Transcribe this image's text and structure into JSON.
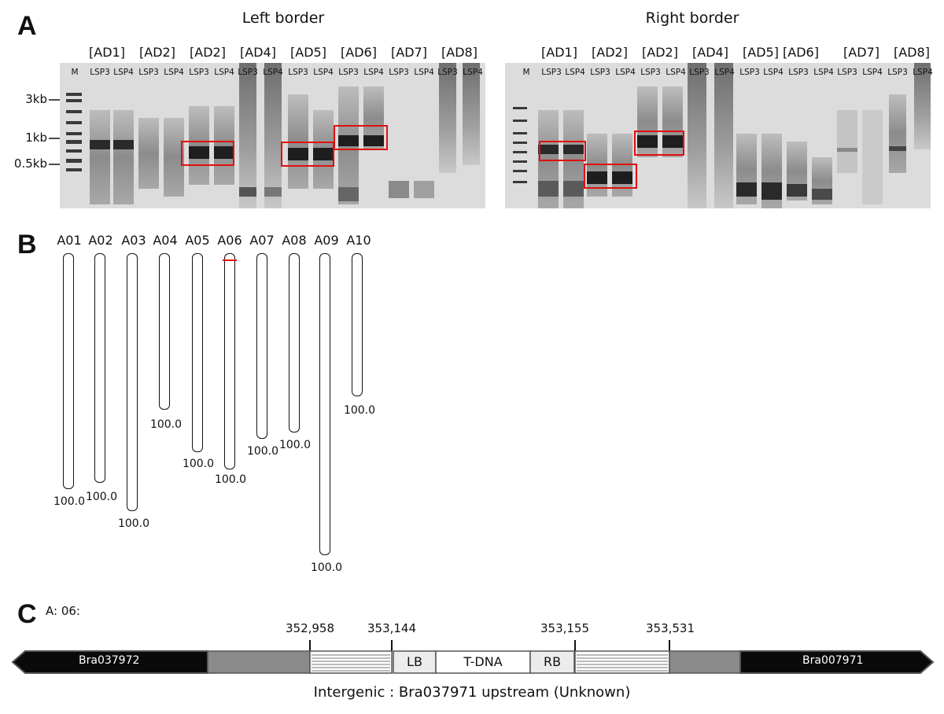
{
  "panel_a": {
    "letter": "A",
    "left_title": "Left border",
    "right_title": "Right border",
    "marker_labels": [
      "3kb",
      "1kb",
      "0.5kb"
    ],
    "marker_lane": "M",
    "left_groups": [
      "[AD1]",
      "[AD2]",
      "[AD2]",
      "[AD4]",
      "[AD5]",
      "[AD6]",
      "[AD7]",
      "[AD8]"
    ],
    "right_groups": [
      "[AD1]",
      "[AD2]",
      "[AD2]",
      "[AD4]",
      "[AD5]",
      "[AD6]",
      "[AD7]",
      "[AD8]"
    ],
    "lane_labels": [
      "LSP3",
      "LSP4"
    ]
  },
  "panel_b": {
    "letter": "B",
    "chromosomes": [
      {
        "name": "A01",
        "length_label": "100.0"
      },
      {
        "name": "A02",
        "length_label": "100.0"
      },
      {
        "name": "A03",
        "length_label": "100.0"
      },
      {
        "name": "A04",
        "length_label": "100.0"
      },
      {
        "name": "A05",
        "length_label": "100.0"
      },
      {
        "name": "A06",
        "length_label": "100.0"
      },
      {
        "name": "A07",
        "length_label": "100.0"
      },
      {
        "name": "A08",
        "length_label": "100.0"
      },
      {
        "name": "A09",
        "length_label": "100.0"
      },
      {
        "name": "A10",
        "length_label": "100.0"
      }
    ]
  },
  "panel_c": {
    "letter": "C",
    "chromosome_label": "A: 06:",
    "coordinates": [
      "352,958",
      "353,144",
      "353,155",
      "353,531"
    ],
    "left_gene": "Bra037972",
    "right_gene": "Bra007971",
    "lb": "LB",
    "tdna": "T-DNA",
    "rb": "RB",
    "caption": "Intergenic : Bra037971 upstream (Unknown)"
  },
  "colors": {
    "highlight": "#e01010",
    "gene": "#0a0a0a",
    "flank": "#8a8a8a",
    "gel": "#dcdcdc"
  }
}
